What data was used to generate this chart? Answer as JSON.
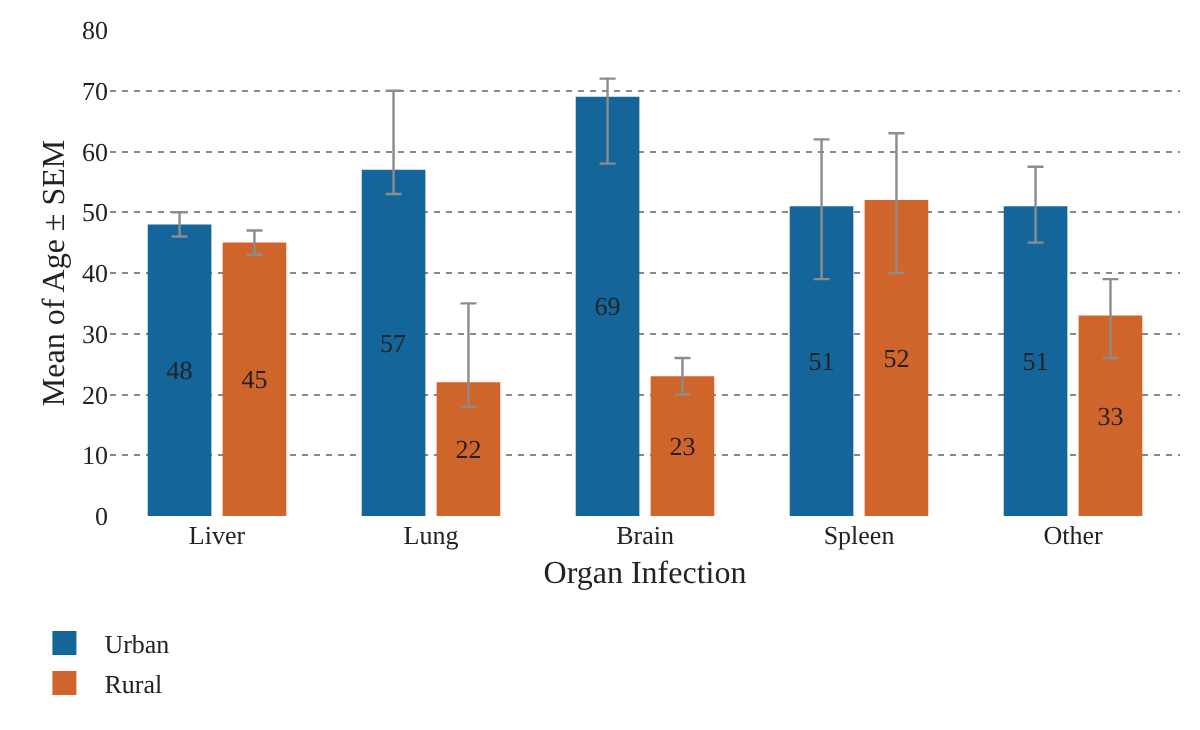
{
  "chart_data": {
    "type": "bar",
    "xlabel": "Organ Infection",
    "ylabel": "Mean of Age ± SEM",
    "categories": [
      "Liver",
      "Lung",
      "Brain",
      "Spleen",
      "Other"
    ],
    "series": [
      {
        "name": "Urban",
        "color": "#14659a",
        "values": [
          48,
          57,
          69,
          51,
          51
        ],
        "errors": [
          [
            46,
            50
          ],
          [
            53,
            70
          ],
          [
            58,
            72
          ],
          [
            39,
            62
          ],
          [
            45,
            57.5
          ]
        ]
      },
      {
        "name": "Rural",
        "color": "#cf652a",
        "values": [
          45,
          22,
          23,
          52,
          33
        ],
        "errors": [
          [
            43,
            47
          ],
          [
            18,
            35
          ],
          [
            20,
            26
          ],
          [
            40,
            63
          ],
          [
            26,
            39
          ]
        ]
      }
    ],
    "ylim": [
      0,
      80
    ],
    "yticks": [
      0,
      10,
      20,
      30,
      40,
      50,
      60,
      70,
      80
    ],
    "grid": "y",
    "legend": "bottom left",
    "data_labels": true
  }
}
